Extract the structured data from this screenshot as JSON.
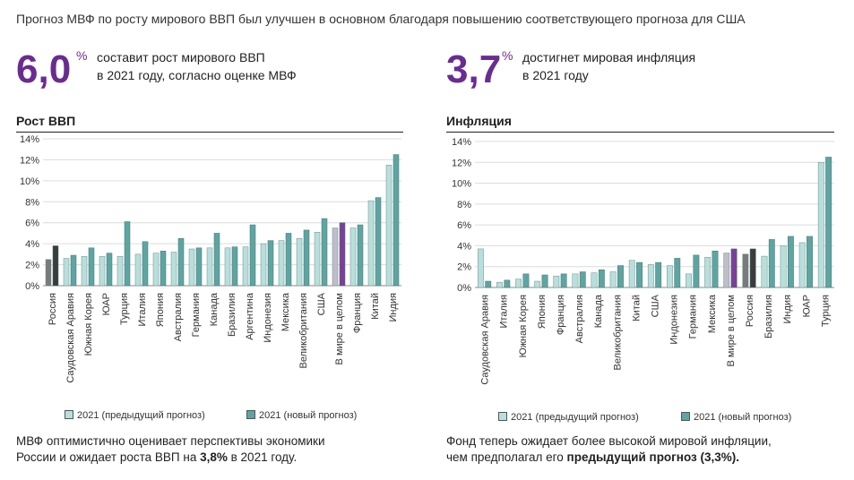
{
  "headline": "Прогноз МВФ по росту мирового ВВП был улучшен в основном благодаря повышению соответствующего прогноза для США",
  "left_stat": {
    "value": "6,0",
    "unit": "%",
    "line1": "составит рост мирового ВВП",
    "line2": "в 2021 году, согласно оценке МВФ"
  },
  "right_stat": {
    "value": "3,7",
    "unit": "%",
    "line1": "достигнет мировая инфляция",
    "line2": "в 2021 году"
  },
  "colors": {
    "prev": "#b9dfdc",
    "new": "#5ea5a2",
    "prev_russia": "#7a7a7a",
    "new_russia": "#3c3c3c",
    "prev_world": "#c0bcc8",
    "new_world": "#7b3f98",
    "accent": "#6a2c91"
  },
  "legend": {
    "prev": "2021 (предыдущий прогноз)",
    "new": "2021 (новый прогноз)"
  },
  "left_note": {
    "line1": "МВФ оптимистично оценивает перспективы экономики",
    "line2_pre": "России и ожидает роста ВВП на ",
    "line2_bold": "3,8%",
    "line2_post": " в 2021 году."
  },
  "right_note": {
    "line1": "Фонд теперь ожидает более высокой мировой инфляции,",
    "line2_pre": "чем предполагал его ",
    "line2_bold": "предыдущий прогноз (3,3%)."
  },
  "chart_data": [
    {
      "type": "bar",
      "title": "Рост ВВП",
      "xlabel": "",
      "ylabel": "",
      "ylim": [
        0,
        14
      ],
      "yticks": [
        "0%",
        "2%",
        "4%",
        "6%",
        "8%",
        "10%",
        "12%",
        "14%"
      ],
      "categories": [
        "Россия",
        "Саудовская Аравия",
        "Южная Корея",
        "ЮАР",
        "Турция",
        "Италия",
        "Япония",
        "Австралия",
        "Германия",
        "Канада",
        "Бразилия",
        "Аргентина",
        "Индонезия",
        "Мексика",
        "Великобритания",
        "США",
        "В мире в целом",
        "Франция",
        "Китай",
        "Индия"
      ],
      "highlight": {
        "Россия": "russia",
        "В мире в целом": "world"
      },
      "series": [
        {
          "name": "2021 (предыдущий прогноз)",
          "values": [
            2.5,
            2.6,
            2.8,
            2.8,
            2.8,
            3.0,
            3.1,
            3.2,
            3.5,
            3.6,
            3.6,
            3.7,
            4.0,
            4.3,
            4.5,
            5.1,
            5.5,
            5.5,
            8.1,
            11.5
          ]
        },
        {
          "name": "2021 (новый прогноз)",
          "values": [
            3.8,
            2.9,
            3.6,
            3.1,
            6.1,
            4.2,
            3.3,
            4.5,
            3.6,
            5.0,
            3.7,
            5.8,
            4.3,
            5.0,
            5.3,
            6.4,
            6.0,
            5.8,
            8.4,
            12.5
          ]
        }
      ]
    },
    {
      "type": "bar",
      "title": "Инфляция",
      "xlabel": "",
      "ylabel": "",
      "ylim": [
        0,
        14
      ],
      "yticks": [
        "0%",
        "2%",
        "4%",
        "6%",
        "8%",
        "10%",
        "12%",
        "14%"
      ],
      "categories": [
        "Саудовская Аравия",
        "Италия",
        "Южная Корея",
        "Япония",
        "Франция",
        "Австралия",
        "Канада",
        "Великобритания",
        "Китай",
        "США",
        "Индонезия",
        "Германия",
        "Мексика",
        "В мире в целом",
        "Россия",
        "Бразилия",
        "Индия",
        "ЮАР",
        "Турция"
      ],
      "highlight": {
        "Россия": "russia",
        "В мире в целом": "world"
      },
      "series": [
        {
          "name": "2021 (предыдущий прогноз)",
          "values": [
            3.7,
            0.5,
            0.8,
            0.6,
            1.1,
            1.3,
            1.4,
            1.5,
            2.6,
            2.2,
            2.1,
            1.3,
            2.9,
            3.3,
            3.2,
            3.0,
            4.0,
            4.3,
            12.0
          ]
        },
        {
          "name": "2021 (новый прогноз)",
          "values": [
            0.6,
            0.7,
            1.3,
            1.2,
            1.3,
            1.5,
            1.7,
            2.1,
            2.4,
            2.4,
            2.8,
            3.1,
            3.5,
            3.7,
            3.7,
            4.6,
            4.9,
            4.9,
            12.5
          ]
        }
      ]
    }
  ]
}
